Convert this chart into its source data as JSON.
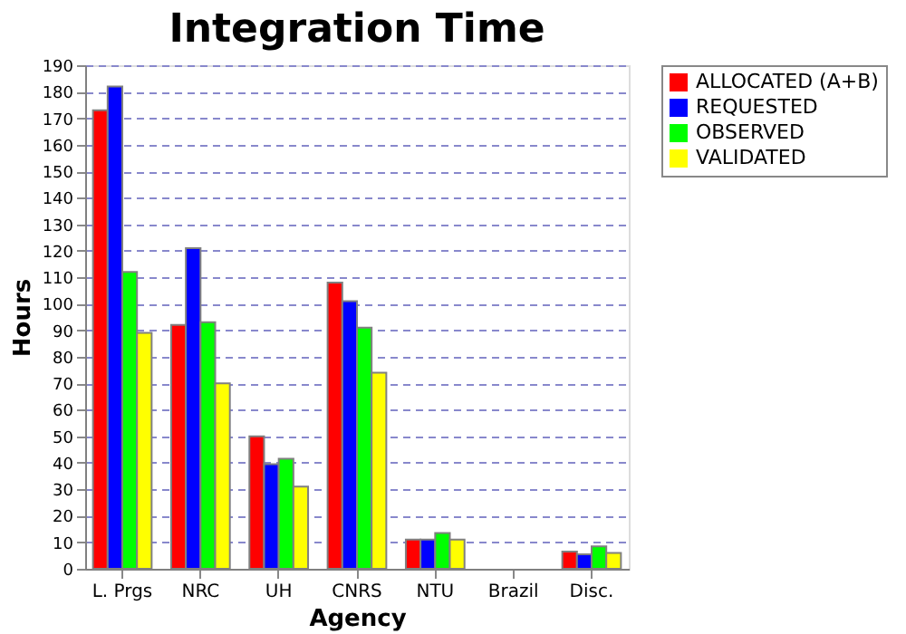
{
  "chart_data": {
    "type": "bar",
    "title": "Integration Time",
    "xlabel": "Agency",
    "ylabel": "Hours",
    "categories": [
      "L. Prgs",
      "NRC",
      "UH",
      "CNRS",
      "NTU",
      "Brazil",
      "Disc."
    ],
    "series": [
      {
        "name": "ALLOCATED (A+B)",
        "color": "#ff0000",
        "values": [
          173,
          92,
          50,
          108,
          11,
          null,
          6.5
        ]
      },
      {
        "name": "REQUESTED",
        "color": "#0000ff",
        "values": [
          182,
          121,
          39.5,
          101,
          11,
          null,
          5.5
        ]
      },
      {
        "name": "OBSERVED",
        "color": "#00ff00",
        "values": [
          112,
          93,
          41.5,
          91,
          13.5,
          null,
          8.5
        ]
      },
      {
        "name": "VALIDATED",
        "color": "#ffff00",
        "values": [
          89,
          70,
          31,
          74,
          11,
          null,
          6
        ]
      }
    ],
    "ylim": [
      0,
      190
    ],
    "yticks": [
      0,
      10,
      20,
      30,
      40,
      50,
      60,
      70,
      80,
      90,
      100,
      110,
      120,
      130,
      140,
      150,
      160,
      170,
      180,
      190
    ],
    "grid": "y",
    "legend": "right"
  }
}
